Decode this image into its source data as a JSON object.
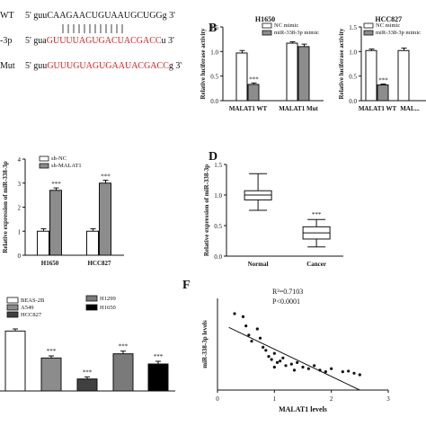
{
  "panel_labels": {
    "b": "B",
    "d": "D",
    "f": "F"
  },
  "panel_a": {
    "rows": [
      {
        "label": "WT",
        "prefix": "5' guu",
        "seq": "CAAGAACUGUAAUGCUGG",
        "suffix": "g 3'"
      },
      {
        "label": "-3p",
        "prefix": "5' gua",
        "seq": "GUUUUAGUGACUACGACC",
        "suffix": "u 3'"
      },
      {
        "label": "Mut",
        "prefix": "5' guu",
        "seq": "GUUUGUAGUGAAUACGACC",
        "suffix": "g 3'"
      }
    ],
    "colors": {
      "red": "#d32020",
      "black": "#111111"
    }
  },
  "chart_data": [
    {
      "id": "B1",
      "type": "bar",
      "title": "H1650",
      "ylabel": "Relative luciferase activity",
      "categories": [
        "MALAT1 WT",
        "MALAT1 Mut"
      ],
      "ylim": [
        0,
        1.5
      ],
      "yticks": [
        "0.0",
        "0.5",
        "1.0",
        "1.5"
      ],
      "series": [
        {
          "name": "NC mimic",
          "values": [
            0.97,
            1.17
          ],
          "errors": [
            0.05,
            0.03
          ],
          "color": "#ffffff"
        },
        {
          "name": "miR-338-3p mimic",
          "values": [
            0.33,
            1.1
          ],
          "errors": [
            0.03,
            0.05
          ],
          "color": "#8c8c8c"
        }
      ],
      "annotations": [
        "***"
      ]
    },
    {
      "id": "B2",
      "type": "bar",
      "title": "HCC827",
      "ylabel": "Relative luciferase activity",
      "categories": [
        "MALAT1 WT",
        "MAL..."
      ],
      "ylim": [
        0,
        1.5
      ],
      "yticks": [
        "0.0",
        "0.5",
        "1.0",
        "1.5"
      ],
      "series": [
        {
          "name": "NC mimic",
          "values": [
            1.02,
            1.02
          ],
          "errors": [
            0.03,
            0.05
          ],
          "color": "#ffffff"
        },
        {
          "name": "miR-338-3p mimic",
          "values": [
            0.32,
            null
          ],
          "errors": [
            0.02,
            null
          ],
          "color": "#8c8c8c"
        }
      ],
      "annotations": [
        "***"
      ]
    },
    {
      "id": "C",
      "type": "bar",
      "ylabel": "Relative expression of miR-338-3p",
      "categories": [
        "H1650",
        "HCC827"
      ],
      "ylim": [
        0,
        4
      ],
      "yticks": [
        "0",
        "1",
        "2",
        "3",
        "4"
      ],
      "series": [
        {
          "name": "sh-NC",
          "values": [
            1.0,
            1.0
          ],
          "errors": [
            0.1,
            0.1
          ],
          "color": "#ffffff"
        },
        {
          "name": "sh-MALAT1",
          "values": [
            2.7,
            3.0
          ],
          "errors": [
            0.1,
            0.12
          ],
          "color": "#8c8c8c"
        }
      ],
      "annotations": [
        "***",
        "***"
      ]
    },
    {
      "id": "D",
      "type": "box",
      "ylabel": "Relative expression of miR-338-3p",
      "categories": [
        "Normal",
        "Cancer"
      ],
      "ylim": [
        0,
        1.5
      ],
      "yticks": [
        "0.0",
        "0.5",
        "1.0",
        "1.5"
      ],
      "boxes": [
        {
          "min": 0.75,
          "q1": 0.92,
          "median": 1.0,
          "q3": 1.07,
          "max": 1.35
        },
        {
          "min": 0.15,
          "q1": 0.28,
          "median": 0.38,
          "q3": 0.48,
          "max": 0.6
        }
      ],
      "annotations": [
        "***"
      ]
    },
    {
      "id": "E",
      "type": "bar",
      "categories": [
        "BEAS-2B",
        "A549",
        "HCC827",
        "H1299",
        "H1650"
      ],
      "ylim": [
        0,
        1.2
      ],
      "values": [
        1.0,
        0.55,
        0.2,
        0.62,
        0.45
      ],
      "errors": [
        0.02,
        0.02,
        0.02,
        0.03,
        0.03
      ],
      "colors": [
        "#ffffff",
        "#8c8c8c",
        "#404040",
        "#7a7a7a",
        "#000000"
      ],
      "legend": [
        "BEAS-2B",
        "A549",
        "HCC827",
        "H1299",
        "H1650"
      ],
      "annotations": [
        "***",
        "***",
        "***",
        "***"
      ]
    },
    {
      "id": "F",
      "type": "scatter",
      "xlabel": "MALAT1 levels",
      "ylabel": "miR-338-3p levels",
      "xlim": [
        0,
        3
      ],
      "ylim": [
        0,
        3
      ],
      "xticks": [
        "0",
        "1",
        "2",
        "3"
      ],
      "stats": [
        "R²=0.7103",
        "P<0.0001"
      ],
      "points": [
        [
          0.3,
          2.5
        ],
        [
          0.45,
          2.4
        ],
        [
          0.5,
          2.1
        ],
        [
          0.55,
          1.8
        ],
        [
          0.6,
          1.6
        ],
        [
          0.7,
          2.0
        ],
        [
          0.75,
          1.7
        ],
        [
          0.8,
          1.4
        ],
        [
          0.85,
          1.3
        ],
        [
          0.9,
          1.1
        ],
        [
          0.95,
          1.0
        ],
        [
          1.0,
          1.2
        ],
        [
          1.05,
          0.9
        ],
        [
          1.1,
          0.95
        ],
        [
          1.15,
          1.05
        ],
        [
          1.2,
          0.8
        ],
        [
          1.3,
          0.85
        ],
        [
          1.4,
          0.9
        ],
        [
          1.5,
          0.75
        ],
        [
          1.6,
          0.7
        ],
        [
          1.7,
          0.8
        ],
        [
          1.8,
          0.65
        ],
        [
          2.0,
          0.7
        ],
        [
          2.2,
          0.6
        ],
        [
          2.4,
          0.55
        ],
        [
          2.5,
          0.5
        ],
        [
          1.0,
          0.75
        ],
        [
          1.35,
          0.65
        ],
        [
          1.9,
          0.6
        ],
        [
          2.3,
          0.62
        ]
      ],
      "fit_line": [
        [
          0.2,
          2.05
        ],
        [
          2.5,
          0.0
        ]
      ]
    }
  ]
}
